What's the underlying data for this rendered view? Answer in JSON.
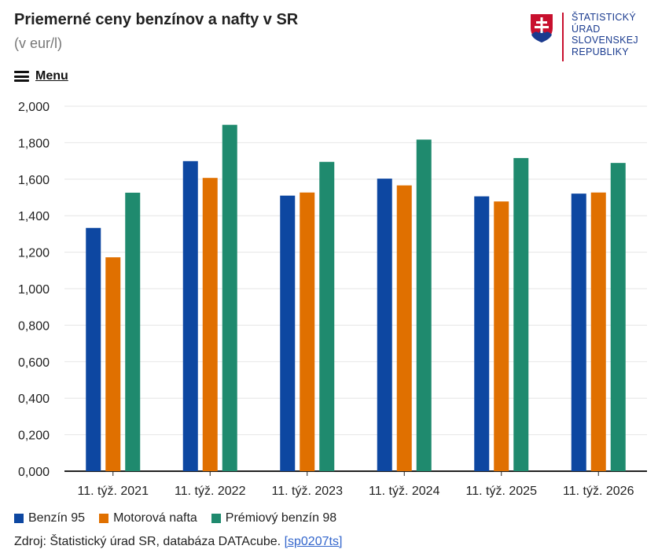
{
  "header": {
    "title": "Priemerné ceny benzínov a nafty v SR",
    "subtitle": "(v eur/l)"
  },
  "logo": {
    "lines": [
      "ŠTATISTICKÝ",
      "ÚRAD",
      "SLOVENSKEJ",
      "REPUBLIKY"
    ]
  },
  "menu": {
    "label": "Menu"
  },
  "colors": {
    "series1": "#0d47a1",
    "series2": "#e07000",
    "series3": "#1f8a6e",
    "logo_blue": "#1a3b8f",
    "logo_red": "#c8102e"
  },
  "chart_data": {
    "type": "bar",
    "title": "Priemerné ceny benzínov a nafty v SR",
    "subtitle": "(v eur/l)",
    "categories": [
      "11. týž. 2021",
      "11. týž. 2022",
      "11. týž. 2023",
      "11. týž. 2024",
      "11. týž. 2025",
      "11. týž. 2026"
    ],
    "series": [
      {
        "name": "Benzín 95",
        "color": "#0d47a1",
        "values": [
          1.333,
          1.699,
          1.51,
          1.603,
          1.506,
          1.521
        ]
      },
      {
        "name": "Motorová nafta",
        "color": "#e07000",
        "values": [
          1.172,
          1.607,
          1.527,
          1.566,
          1.478,
          1.527
        ]
      },
      {
        "name": "Prémiový benzín 98",
        "color": "#1f8a6e",
        "values": [
          1.526,
          1.898,
          1.695,
          1.817,
          1.716,
          1.689
        ]
      }
    ],
    "ylim": [
      0,
      2.0
    ],
    "yticks": [
      "0,000",
      "0,200",
      "0,400",
      "0,600",
      "0,800",
      "1,000",
      "1,200",
      "1,400",
      "1,600",
      "1,800",
      "2,000"
    ],
    "grid": true,
    "legend": "bottom-left"
  },
  "source": {
    "text": "Zdroj: Štatistický úrad SR, databáza DATAcube.",
    "link": "[sp0207ts]"
  }
}
